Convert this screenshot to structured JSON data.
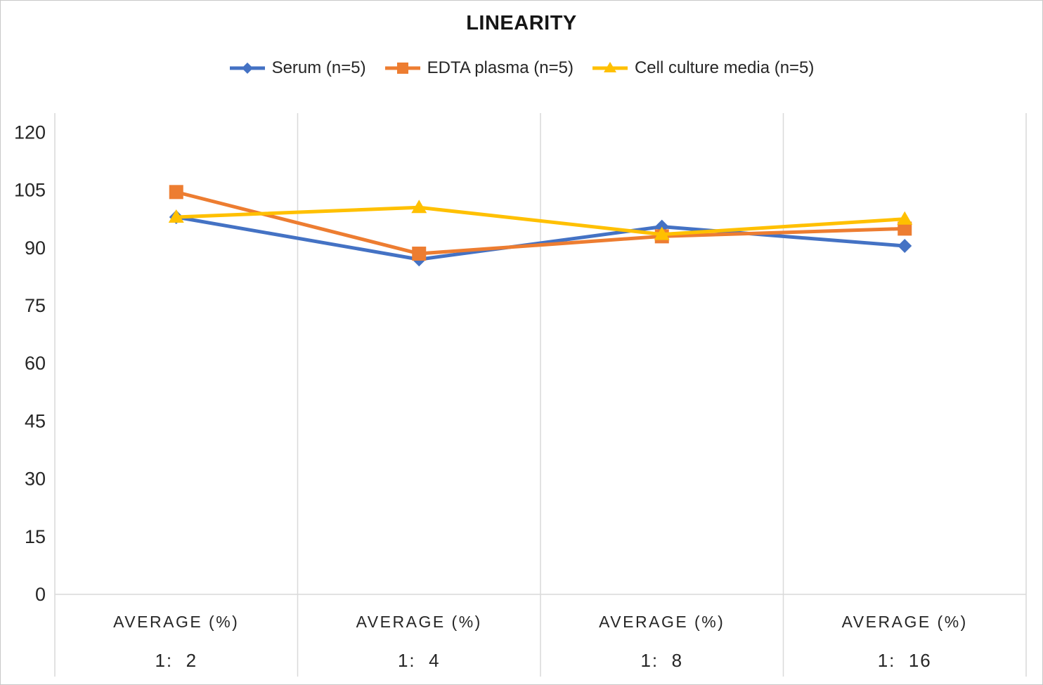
{
  "chart_data": {
    "type": "line",
    "title": "LINEARITY",
    "legend_position": "top",
    "grid": "vertical-category-separators-only",
    "axis_color": "#d9d9d9",
    "text_color": "#262626",
    "background": "#ffffff",
    "category_header": "AVERAGE (%)",
    "categories": [
      "1:  2",
      "1:  4",
      "1:  8",
      "1:  16"
    ],
    "y_ticks": [
      0,
      15,
      30,
      45,
      60,
      75,
      90,
      105,
      120
    ],
    "ylim": [
      0,
      125
    ],
    "ylabel": "",
    "xlabel": "",
    "series": [
      {
        "name": "Serum (n=5)",
        "color": "#4472C4",
        "marker": "diamond",
        "values": [
          98,
          87,
          95.5,
          90.5
        ]
      },
      {
        "name": "EDTA plasma (n=5)",
        "color": "#ED7D31",
        "marker": "square",
        "values": [
          104.5,
          88.5,
          93,
          95
        ]
      },
      {
        "name": "Cell culture media (n=5)",
        "color": "#FFC000",
        "marker": "triangle",
        "values": [
          98,
          100.5,
          93.5,
          97.5
        ]
      }
    ]
  }
}
